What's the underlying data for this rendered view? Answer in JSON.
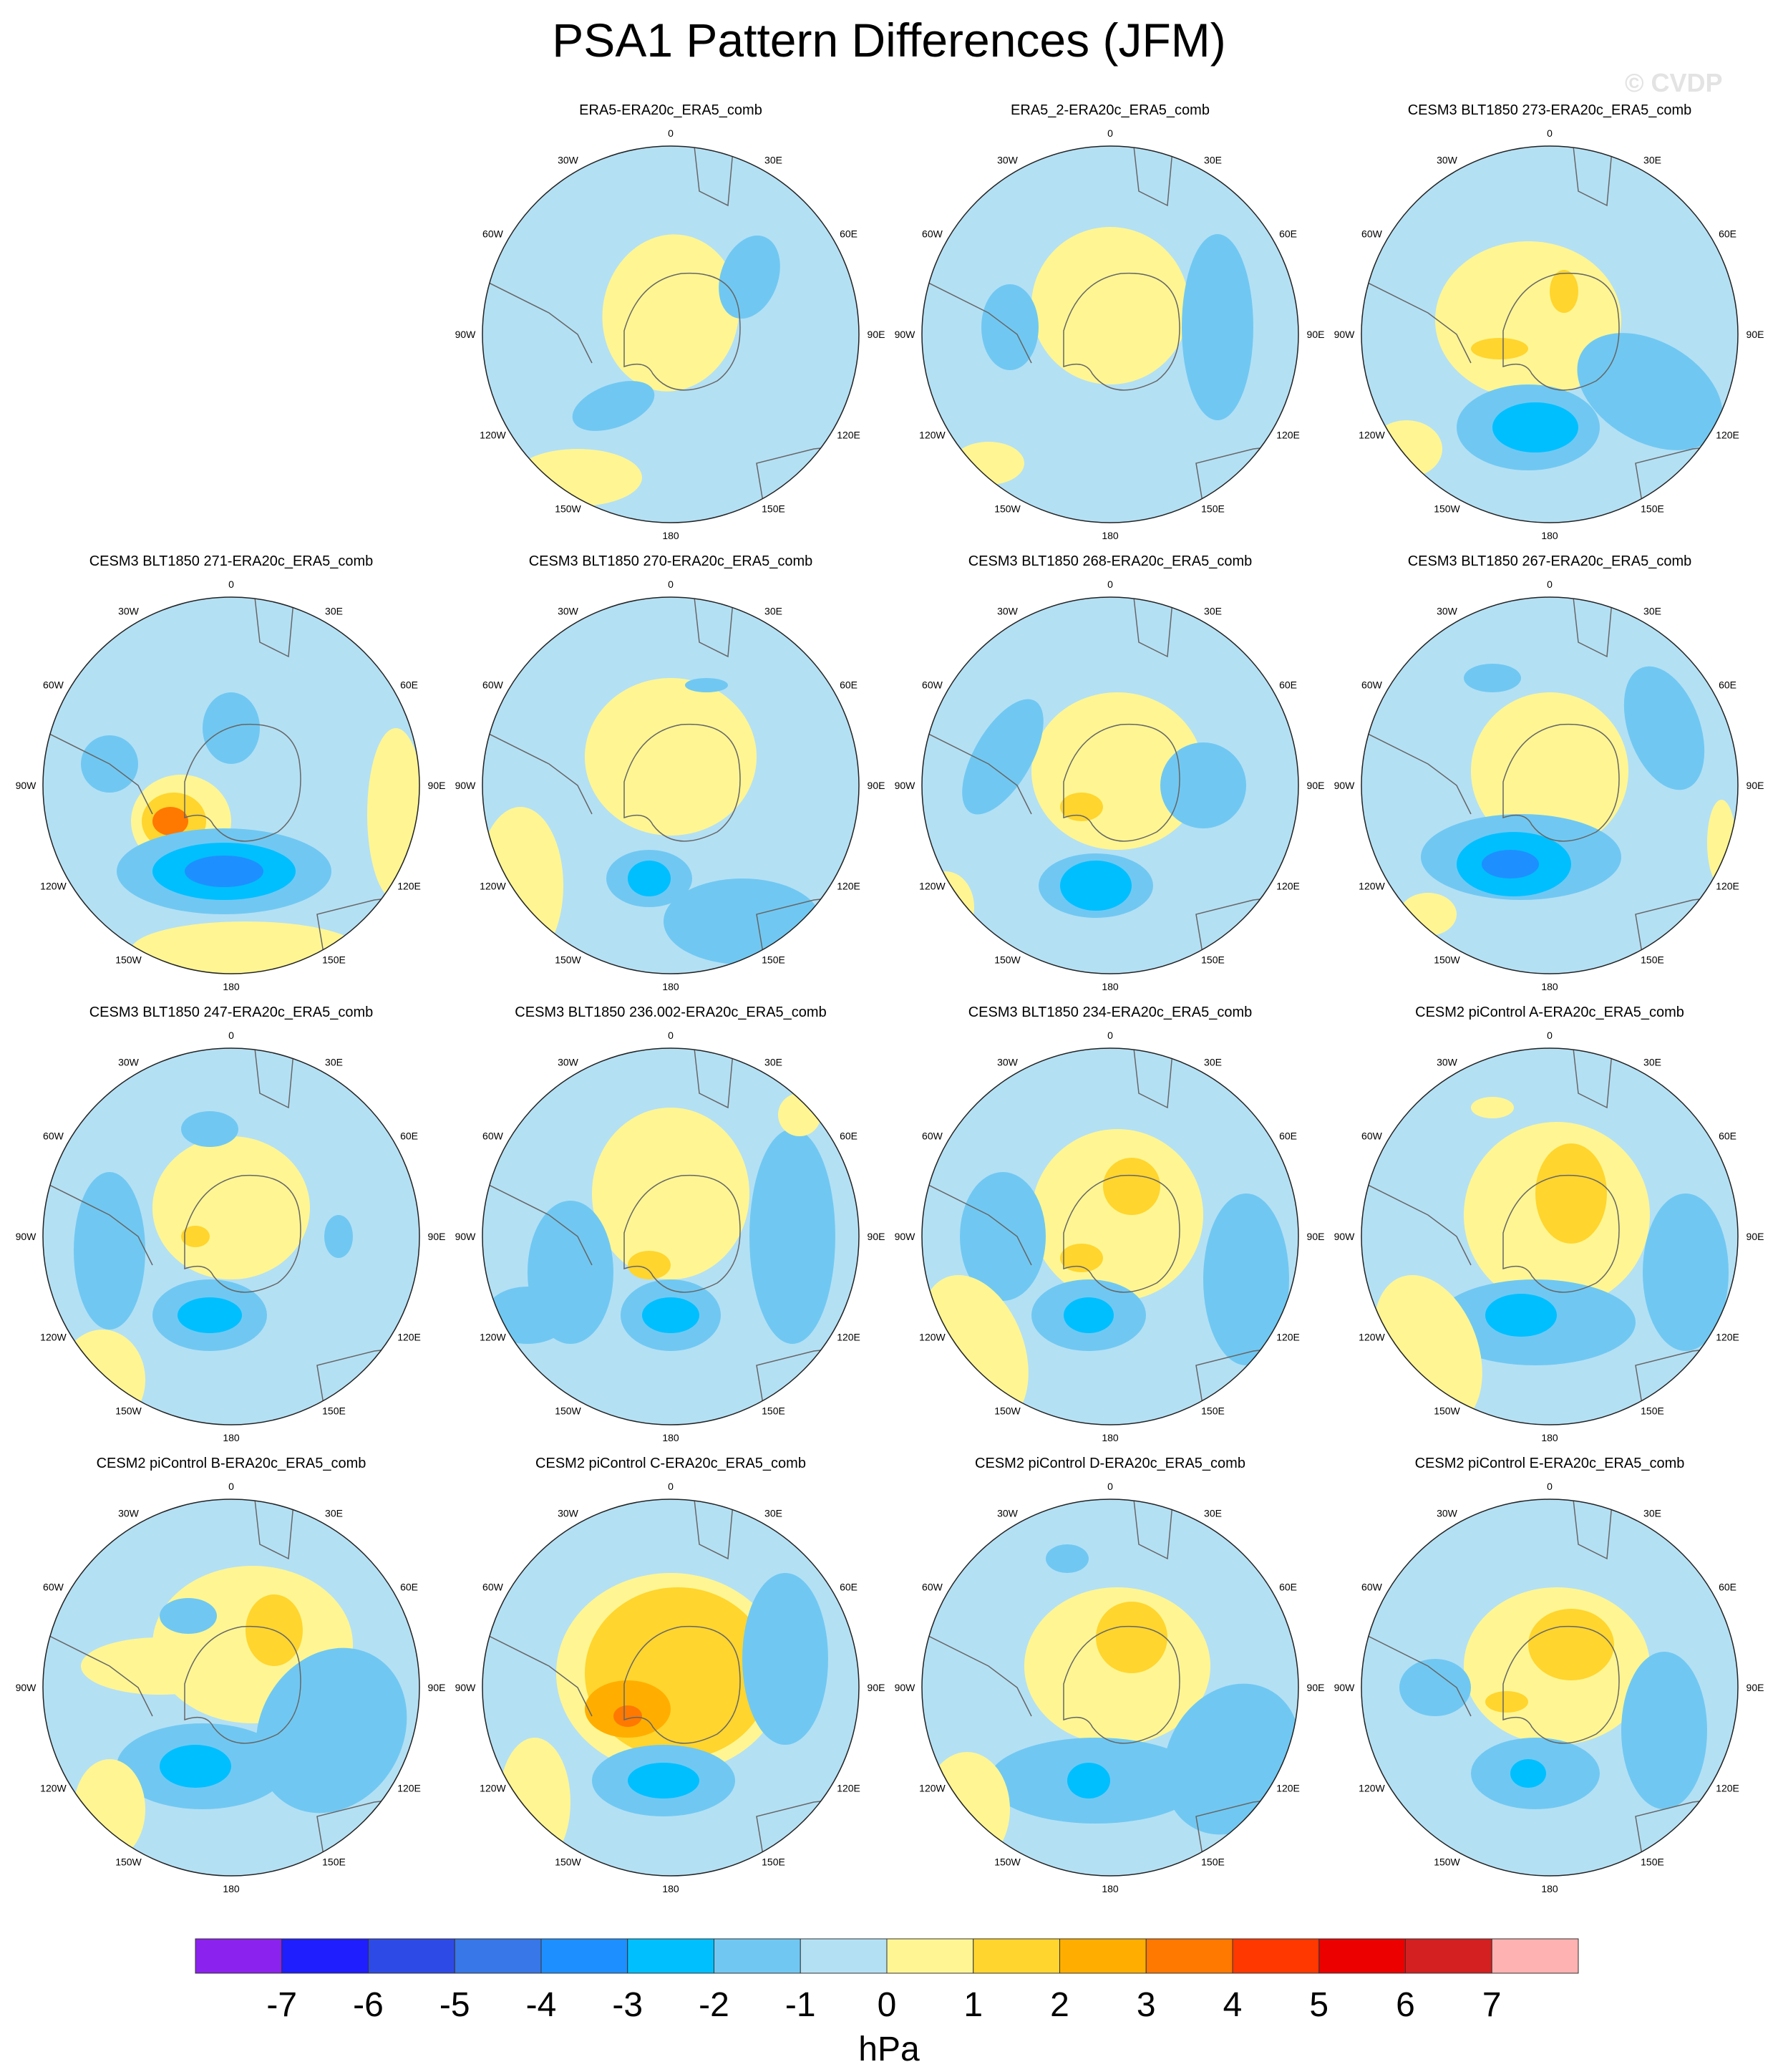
{
  "title": "PSA1 Pattern Differences (JFM)",
  "watermark": "© CVDP",
  "panels": [
    {
      "title": "",
      "empty": true
    },
    {
      "title": "ERA5-ERA20c_ERA5_comb"
    },
    {
      "title": "ERA5_2-ERA20c_ERA5_comb"
    },
    {
      "title": "CESM3 BLT1850 273-ERA20c_ERA5_comb"
    },
    {
      "title": "CESM3 BLT1850 271-ERA20c_ERA5_comb"
    },
    {
      "title": "CESM3 BLT1850 270-ERA20c_ERA5_comb"
    },
    {
      "title": "CESM3 BLT1850 268-ERA20c_ERA5_comb"
    },
    {
      "title": "CESM3 BLT1850 267-ERA20c_ERA5_comb"
    },
    {
      "title": "CESM3 BLT1850 247-ERA20c_ERA5_comb"
    },
    {
      "title": "CESM3 BLT1850 236.002-ERA20c_ERA5_comb"
    },
    {
      "title": "CESM3 BLT1850 234-ERA20c_ERA5_comb"
    },
    {
      "title": "CESM2 piControl A-ERA20c_ERA5_comb"
    },
    {
      "title": "CESM2 piControl B-ERA20c_ERA5_comb"
    },
    {
      "title": "CESM2 piControl C-ERA20c_ERA5_comb"
    },
    {
      "title": "CESM2 piControl D-ERA20c_ERA5_comb"
    },
    {
      "title": "CESM2 piControl E-ERA20c_ERA5_comb"
    }
  ],
  "longitude_labels": [
    "0",
    "30E",
    "60E",
    "90E",
    "120E",
    "150E",
    "180",
    "150W",
    "120W",
    "90W",
    "60W",
    "30W"
  ],
  "colorbar": {
    "unit": "hPa",
    "tick_labels": [
      "-7",
      "-6",
      "-5",
      "-4",
      "-3",
      "-2",
      "-1",
      "0",
      "1",
      "2",
      "3",
      "4",
      "5",
      "6",
      "7"
    ],
    "colors": [
      "#8b22ee",
      "#1e1eff",
      "#2e4ae6",
      "#3777e8",
      "#1e8fff",
      "#00bfff",
      "#70c8f2",
      "#b4e0f4",
      "#fff693",
      "#ffd52e",
      "#ffae00",
      "#ff7800",
      "#ff3800",
      "#ec0000",
      "#d42020",
      "#ffb2b2"
    ]
  }
}
